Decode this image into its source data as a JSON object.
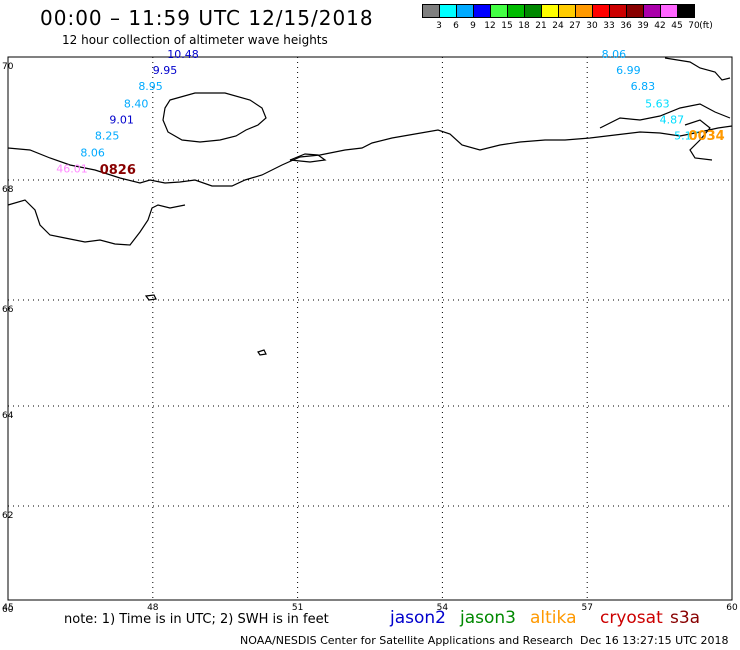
{
  "header": {
    "title": "00:00 – 11:59 UTC 12/15/2018",
    "subtitle": "12 hour collection of altimeter wave heights"
  },
  "legend": {
    "unit": "(ft)",
    "bins": [
      {
        "label": "3",
        "color": "#7f7f7f"
      },
      {
        "label": "6",
        "color": "#00ffff"
      },
      {
        "label": "9",
        "color": "#00aaff"
      },
      {
        "label": "12",
        "color": "#0000ff"
      },
      {
        "label": "15",
        "color": "#44ff44"
      },
      {
        "label": "18",
        "color": "#00bb00"
      },
      {
        "label": "21",
        "color": "#008800"
      },
      {
        "label": "24",
        "color": "#ffff00"
      },
      {
        "label": "27",
        "color": "#ffcc00"
      },
      {
        "label": "30",
        "color": "#ff9900"
      },
      {
        "label": "33",
        "color": "#ff0000"
      },
      {
        "label": "36",
        "color": "#cc0000"
      },
      {
        "label": "39",
        "color": "#880000"
      },
      {
        "label": "42",
        "color": "#aa00aa"
      },
      {
        "label": "45",
        "color": "#ff66ff"
      },
      {
        "label": "70",
        "color": "#000000"
      }
    ]
  },
  "map": {
    "lon_range": [
      45,
      60
    ],
    "lat_range": [
      60,
      70
    ],
    "lon_ticks": [
      "45",
      "48",
      "51",
      "54",
      "57",
      "60"
    ],
    "lat_ticks": [
      "70",
      "68",
      "66",
      "64",
      "62",
      "60"
    ],
    "lat_tick_values": [
      70,
      68,
      66,
      64,
      62,
      60
    ],
    "track_left": [
      {
        "label": "10.48",
        "color": "#0000cc",
        "lon": 48.3,
        "lat": 69.98
      },
      {
        "label": "9.95",
        "color": "#0000cc",
        "lon": 48.0,
        "lat": 69.72
      },
      {
        "label": "8.95",
        "color": "#00aaff",
        "lon": 47.7,
        "lat": 69.46
      },
      {
        "label": "8.40",
        "color": "#00aaff",
        "lon": 47.4,
        "lat": 69.18
      },
      {
        "label": "9.01",
        "color": "#0000cc",
        "lon": 47.1,
        "lat": 68.92
      },
      {
        "label": "8.25",
        "color": "#00aaff",
        "lon": 46.8,
        "lat": 68.66
      },
      {
        "label": "8.06",
        "color": "#00aaff",
        "lon": 46.5,
        "lat": 68.38
      },
      {
        "label": "46.01",
        "color": "#ff88ff",
        "lon": 46.0,
        "lat": 68.12
      }
    ],
    "track_right": [
      {
        "label": "8.06",
        "color": "#00aaff",
        "lon": 57.3,
        "lat": 69.98
      },
      {
        "label": "6.99",
        "color": "#00aaff",
        "lon": 57.6,
        "lat": 69.72
      },
      {
        "label": "6.83",
        "color": "#00aaff",
        "lon": 57.9,
        "lat": 69.46
      },
      {
        "label": "5.63",
        "color": "#00ddff",
        "lon": 58.2,
        "lat": 69.18
      },
      {
        "label": "4.87",
        "color": "#00ddff",
        "lon": 58.5,
        "lat": 68.92
      },
      {
        "label": "5.17",
        "color": "#00ddff",
        "lon": 58.8,
        "lat": 68.66
      }
    ],
    "time_labels": [
      {
        "label": "0826",
        "color": "#880000",
        "lon": 46.9,
        "lat": 68.1
      },
      {
        "label": "0034",
        "color": "#ff9900",
        "lon": 59.1,
        "lat": 68.65
      }
    ]
  },
  "footer": {
    "note": "note: 1) Time is in UTC; 2) SWH is in feet",
    "satellites": [
      {
        "name": "jason2",
        "color": "#0000cc"
      },
      {
        "name": "jason3",
        "color": "#008800"
      },
      {
        "name": "altika",
        "color": "#ff9900"
      },
      {
        "name": "cryosat",
        "color": "#cc0000"
      },
      {
        "name": "s3a",
        "color": "#880000"
      }
    ],
    "credit": "NOAA/NESDIS Center for Satellite Applications and Research",
    "generated": "Dec 16 13:27:15 UTC 2018"
  }
}
